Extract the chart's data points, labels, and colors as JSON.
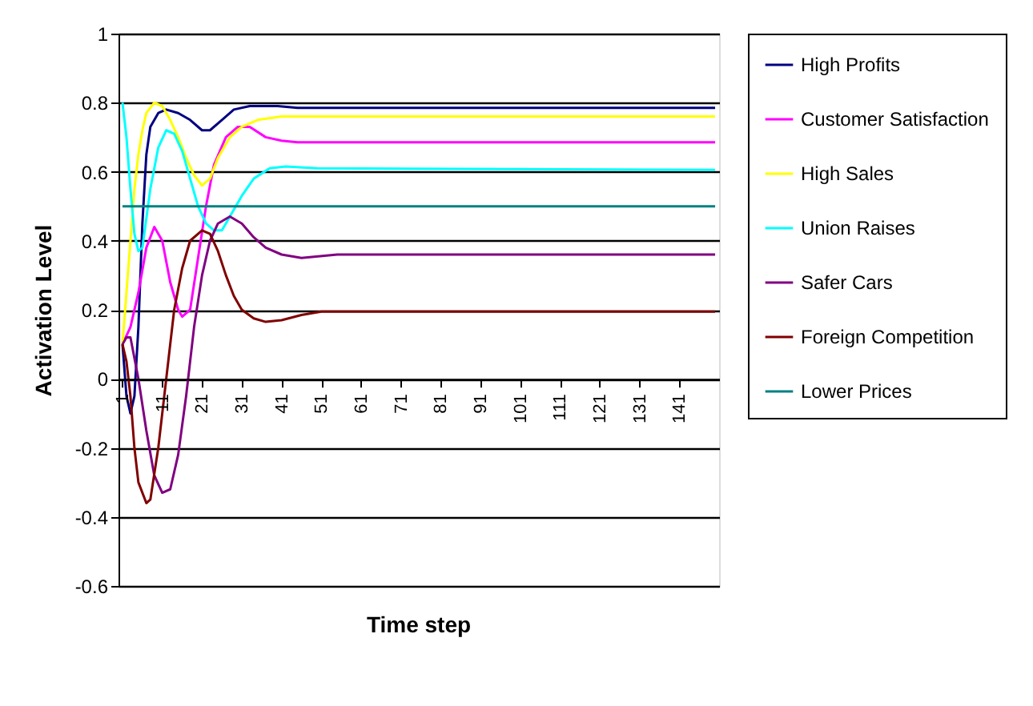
{
  "chart_data": {
    "type": "line",
    "xlabel": "Time step",
    "ylabel": "Activation Level",
    "xlim": [
      0,
      151
    ],
    "xticks": [
      1,
      11,
      21,
      31,
      41,
      51,
      61,
      71,
      81,
      91,
      101,
      111,
      121,
      131,
      141
    ],
    "ylim": [
      -0.6,
      1
    ],
    "yticks": [
      -0.6,
      -0.4,
      -0.2,
      0,
      0.2,
      0.4,
      0.6,
      0.8,
      1
    ],
    "grid": "y",
    "legend": "right",
    "marker": "none",
    "line_style": "solid",
    "series": [
      {
        "name": "High Profits",
        "color": "#000080",
        "x": [
          1,
          2,
          3,
          4,
          5,
          6,
          7,
          8,
          10,
          12,
          15,
          18,
          21,
          23,
          26,
          29,
          33,
          40,
          45,
          150
        ],
        "values": [
          0.1,
          -0.05,
          -0.1,
          -0.05,
          0.15,
          0.45,
          0.65,
          0.73,
          0.77,
          0.78,
          0.77,
          0.75,
          0.72,
          0.72,
          0.75,
          0.78,
          0.79,
          0.79,
          0.785,
          0.785
        ]
      },
      {
        "name": "Customer Satisfaction",
        "color": "#ff00ff",
        "x": [
          1,
          3,
          5,
          7,
          9,
          11,
          13,
          15,
          16,
          18,
          20,
          22,
          24,
          27,
          30,
          33,
          37,
          41,
          45,
          150
        ],
        "values": [
          0.1,
          0.15,
          0.25,
          0.38,
          0.44,
          0.4,
          0.28,
          0.2,
          0.18,
          0.2,
          0.35,
          0.5,
          0.62,
          0.7,
          0.73,
          0.73,
          0.7,
          0.69,
          0.685,
          0.685
        ]
      },
      {
        "name": "High Sales",
        "color": "#ffff00",
        "x": [
          1,
          2,
          3,
          4,
          5,
          6,
          7,
          9,
          11,
          13,
          15,
          17,
          19,
          21,
          23,
          25,
          28,
          31,
          35,
          41,
          150
        ],
        "values": [
          0.1,
          0.25,
          0.4,
          0.55,
          0.65,
          0.72,
          0.77,
          0.8,
          0.79,
          0.75,
          0.7,
          0.64,
          0.59,
          0.56,
          0.58,
          0.64,
          0.7,
          0.73,
          0.75,
          0.76,
          0.76
        ]
      },
      {
        "name": "Union Raises",
        "color": "#00ffff",
        "x": [
          1,
          2,
          3,
          4,
          5,
          6,
          8,
          10,
          12,
          14,
          16,
          18,
          20,
          22,
          24,
          26,
          28,
          31,
          34,
          38,
          42,
          50,
          150
        ],
        "values": [
          0.8,
          0.7,
          0.55,
          0.42,
          0.37,
          0.38,
          0.55,
          0.67,
          0.72,
          0.71,
          0.66,
          0.58,
          0.5,
          0.45,
          0.43,
          0.43,
          0.47,
          0.53,
          0.58,
          0.61,
          0.615,
          0.61,
          0.605
        ]
      },
      {
        "name": "Safer Cars",
        "color": "#800080",
        "x": [
          1,
          2,
          3,
          5,
          7,
          9,
          11,
          13,
          15,
          17,
          19,
          21,
          23,
          25,
          28,
          31,
          34,
          37,
          41,
          46,
          55,
          150
        ],
        "values": [
          0.1,
          0.12,
          0.12,
          0.0,
          -0.15,
          -0.28,
          -0.33,
          -0.32,
          -0.22,
          -0.05,
          0.15,
          0.3,
          0.4,
          0.45,
          0.47,
          0.45,
          0.41,
          0.38,
          0.36,
          0.35,
          0.36,
          0.36
        ]
      },
      {
        "name": "Foreign Competition",
        "color": "#800000",
        "x": [
          1,
          2,
          3,
          4,
          5,
          7,
          8,
          10,
          12,
          14,
          16,
          18,
          21,
          23,
          25,
          27,
          29,
          31,
          34,
          37,
          41,
          46,
          51,
          150
        ],
        "values": [
          0.1,
          0.05,
          -0.05,
          -0.2,
          -0.3,
          -0.36,
          -0.35,
          -0.2,
          0.0,
          0.2,
          0.32,
          0.4,
          0.43,
          0.42,
          0.37,
          0.3,
          0.24,
          0.2,
          0.175,
          0.165,
          0.17,
          0.185,
          0.195,
          0.195
        ]
      },
      {
        "name": "Lower Prices",
        "color": "#008080",
        "x": [
          1,
          150
        ],
        "values": [
          0.5,
          0.5
        ]
      }
    ]
  }
}
